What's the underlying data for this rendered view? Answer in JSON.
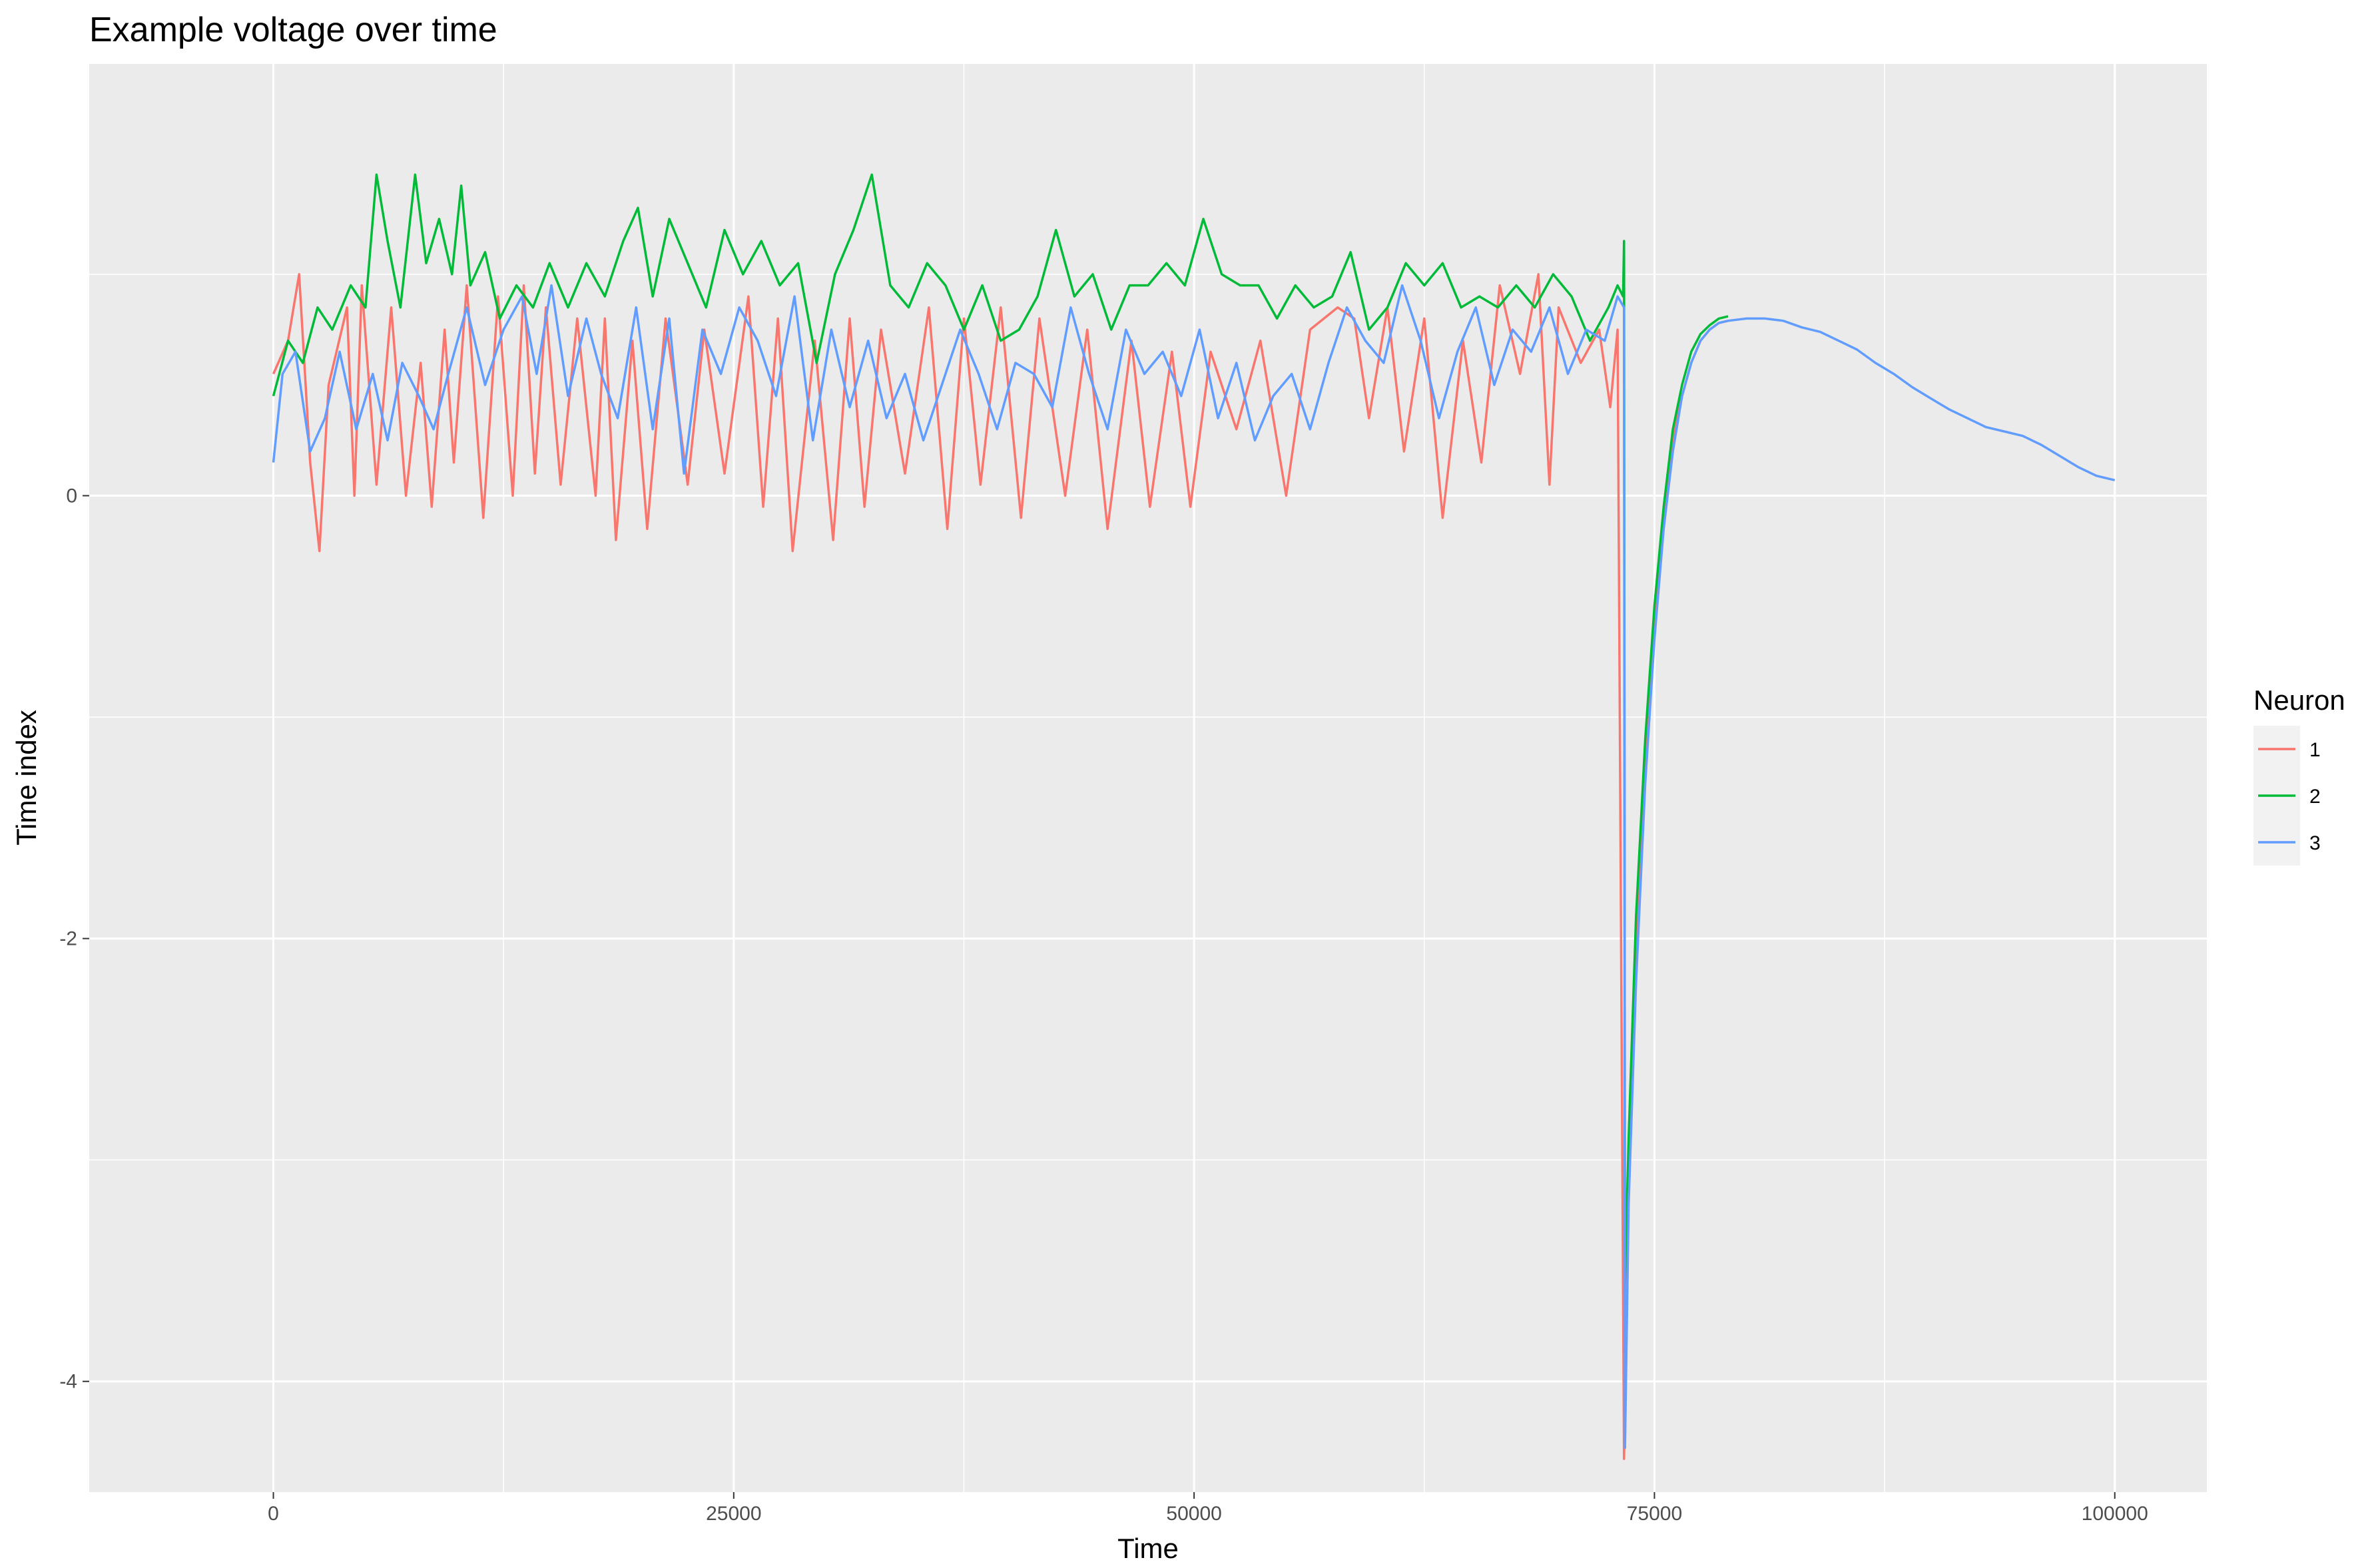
{
  "chart_data": {
    "type": "line",
    "title": "Example voltage over time",
    "xlabel": "Time",
    "ylabel": "Time index",
    "xlim": [
      -10000,
      105000
    ],
    "ylim": [
      -4.5,
      1.95
    ],
    "x_ticks": [
      0,
      25000,
      50000,
      75000,
      100000
    ],
    "x_tick_labels": [
      "0",
      "25000",
      "50000",
      "75000",
      "100000"
    ],
    "y_ticks": [
      0,
      -2,
      -4
    ],
    "y_tick_labels": [
      "0",
      "-2",
      "-4"
    ],
    "y_minor_gridlines": [
      1,
      -1,
      -3
    ],
    "x_minor_gridlines": [
      12500,
      37500,
      62500,
      87500
    ],
    "grid": true,
    "panel_background": "#ebebeb",
    "legend": {
      "title": "Neuron",
      "placement": "right",
      "entries": [
        "1",
        "2",
        "3"
      ]
    },
    "series": [
      {
        "name": "1",
        "color": "#f8766d",
        "x": [
          0,
          800,
          1400,
          2000,
          2500,
          3000,
          4000,
          4400,
          4800,
          5600,
          6400,
          7200,
          8000,
          8600,
          9300,
          9800,
          10500,
          11400,
          12200,
          13000,
          13600,
          14200,
          14800,
          15600,
          16500,
          17500,
          18000,
          18600,
          19500,
          20300,
          21300,
          22500,
          23400,
          24500,
          25800,
          26600,
          27400,
          28200,
          29400,
          30400,
          31300,
          32100,
          33000,
          34300,
          35600,
          36600,
          37500,
          38400,
          39500,
          40600,
          41600,
          43000,
          44200,
          45300,
          46600,
          47600,
          48800,
          49800,
          50900,
          52300,
          53600,
          55000,
          56300,
          57800,
          58700,
          59500,
          60500,
          61400,
          62500,
          63500,
          64600,
          65600,
          66600,
          67700,
          68700,
          69300,
          69800,
          71000,
          72000,
          72600,
          73000,
          73350,
          73400,
          73600,
          74000,
          74500,
          75000,
          75500,
          76000,
          76500,
          77000,
          77500,
          78000,
          78500,
          79000
        ],
        "y": [
          0.55,
          0.7,
          1.0,
          0.15,
          -0.25,
          0.5,
          0.85,
          0.0,
          0.95,
          0.05,
          0.85,
          0.0,
          0.6,
          -0.05,
          0.75,
          0.15,
          0.95,
          -0.1,
          0.9,
          0.0,
          0.95,
          0.1,
          0.85,
          0.05,
          0.8,
          0.0,
          0.8,
          -0.2,
          0.7,
          -0.15,
          0.8,
          0.05,
          0.75,
          0.1,
          0.9,
          -0.05,
          0.8,
          -0.25,
          0.7,
          -0.2,
          0.8,
          -0.05,
          0.75,
          0.1,
          0.85,
          -0.15,
          0.8,
          0.05,
          0.85,
          -0.1,
          0.8,
          0.0,
          0.75,
          -0.15,
          0.7,
          -0.05,
          0.65,
          -0.05,
          0.65,
          0.3,
          0.7,
          0.0,
          0.75,
          0.85,
          0.8,
          0.35,
          0.85,
          0.2,
          0.8,
          -0.1,
          0.7,
          0.15,
          0.95,
          0.55,
          1.0,
          0.05,
          0.85,
          0.6,
          0.75,
          0.4,
          0.75,
          -4.35,
          -4.1,
          -3.0,
          -2.0,
          -1.2,
          -0.6,
          -0.1,
          0.25,
          0.45,
          0.6,
          0.7,
          0.75,
          0.78,
          0.79
        ]
      },
      {
        "name": "2",
        "color": "#00ba38",
        "x": [
          0,
          800,
          1600,
          2400,
          3200,
          4200,
          5000,
          5600,
          6200,
          6900,
          7700,
          8300,
          9000,
          9700,
          10200,
          10700,
          11500,
          12300,
          13200,
          14100,
          15000,
          16000,
          17000,
          18000,
          19000,
          19800,
          20600,
          21500,
          22500,
          23500,
          24500,
          25500,
          26500,
          27500,
          28500,
          29500,
          30500,
          31500,
          32500,
          33500,
          34500,
          35500,
          36500,
          37500,
          38500,
          39500,
          40500,
          41500,
          42500,
          43500,
          44500,
          45500,
          46500,
          47500,
          48500,
          49500,
          50500,
          51500,
          52500,
          53500,
          54500,
          55500,
          56500,
          57500,
          58500,
          59500,
          60500,
          61500,
          62500,
          63500,
          64500,
          65500,
          66500,
          67500,
          68500,
          69500,
          70500,
          71500,
          72500,
          73000,
          73300,
          73350,
          73400,
          73600,
          74000,
          74500,
          75000,
          75500,
          76000,
          76500,
          77000,
          77500,
          78000,
          78500,
          79000
        ],
        "y": [
          0.45,
          0.7,
          0.6,
          0.85,
          0.75,
          0.95,
          0.85,
          1.45,
          1.15,
          0.85,
          1.45,
          1.05,
          1.25,
          1.0,
          1.4,
          0.95,
          1.1,
          0.8,
          0.95,
          0.85,
          1.05,
          0.85,
          1.05,
          0.9,
          1.15,
          1.3,
          0.9,
          1.25,
          1.05,
          0.85,
          1.2,
          1.0,
          1.15,
          0.95,
          1.05,
          0.6,
          1.0,
          1.2,
          1.45,
          0.95,
          0.85,
          1.05,
          0.95,
          0.75,
          0.95,
          0.7,
          0.75,
          0.9,
          1.2,
          0.9,
          1.0,
          0.75,
          0.95,
          0.95,
          1.05,
          0.95,
          1.25,
          1.0,
          0.95,
          0.95,
          0.8,
          0.95,
          0.85,
          0.9,
          1.1,
          0.75,
          0.85,
          1.05,
          0.95,
          1.05,
          0.85,
          0.9,
          0.85,
          0.95,
          0.85,
          1.0,
          0.9,
          0.7,
          0.85,
          0.95,
          0.9,
          1.15,
          -3.55,
          -2.9,
          -1.9,
          -1.1,
          -0.5,
          -0.05,
          0.3,
          0.5,
          0.65,
          0.73,
          0.77,
          0.8,
          0.81
        ]
      },
      {
        "name": "3",
        "color": "#619cff",
        "x": [
          0,
          500,
          1200,
          2000,
          2800,
          3600,
          4500,
          5400,
          6200,
          7000,
          7900,
          8700,
          9500,
          10500,
          11500,
          12500,
          13500,
          14300,
          15100,
          16000,
          17000,
          17800,
          18700,
          19700,
          20600,
          21500,
          22300,
          23300,
          24300,
          25300,
          26300,
          27300,
          28300,
          29300,
          30300,
          31300,
          32300,
          33300,
          34300,
          35300,
          36300,
          37300,
          38300,
          39300,
          40300,
          41300,
          42300,
          43300,
          44300,
          45300,
          46300,
          47300,
          48300,
          49300,
          50300,
          51300,
          52300,
          53300,
          54300,
          55300,
          56300,
          57300,
          58300,
          59300,
          60300,
          61300,
          62300,
          63300,
          64300,
          65300,
          66300,
          67300,
          68300,
          69300,
          70300,
          71300,
          72300,
          73000,
          73350,
          73400,
          73600,
          74000,
          74500,
          75000,
          75500,
          76000,
          76500,
          77000,
          77500,
          78000,
          78500,
          79000,
          80000,
          81000,
          82000,
          83000,
          84000,
          85000,
          86000,
          87000,
          88000,
          89000,
          90000,
          91000,
          92000,
          93000,
          94000,
          95000,
          96000,
          97000,
          98000,
          99000,
          100000
        ],
        "y": [
          0.15,
          0.55,
          0.65,
          0.2,
          0.35,
          0.65,
          0.3,
          0.55,
          0.25,
          0.6,
          0.45,
          0.3,
          0.55,
          0.85,
          0.5,
          0.75,
          0.9,
          0.55,
          0.95,
          0.45,
          0.8,
          0.55,
          0.35,
          0.85,
          0.3,
          0.8,
          0.1,
          0.75,
          0.55,
          0.85,
          0.7,
          0.45,
          0.9,
          0.25,
          0.75,
          0.4,
          0.7,
          0.35,
          0.55,
          0.25,
          0.5,
          0.75,
          0.55,
          0.3,
          0.6,
          0.55,
          0.4,
          0.85,
          0.55,
          0.3,
          0.75,
          0.55,
          0.65,
          0.45,
          0.75,
          0.35,
          0.6,
          0.25,
          0.45,
          0.55,
          0.3,
          0.6,
          0.85,
          0.7,
          0.6,
          0.95,
          0.7,
          0.35,
          0.65,
          0.85,
          0.5,
          0.75,
          0.65,
          0.85,
          0.55,
          0.75,
          0.7,
          0.9,
          0.85,
          -4.3,
          -3.2,
          -2.2,
          -1.3,
          -0.65,
          -0.15,
          0.2,
          0.45,
          0.6,
          0.7,
          0.75,
          0.78,
          0.79,
          0.8,
          0.8,
          0.79,
          0.76,
          0.74,
          0.7,
          0.66,
          0.6,
          0.55,
          0.49,
          0.44,
          0.39,
          0.35,
          0.31,
          0.29,
          0.27,
          0.23,
          0.18,
          0.13,
          0.09,
          0.07
        ]
      }
    ]
  }
}
